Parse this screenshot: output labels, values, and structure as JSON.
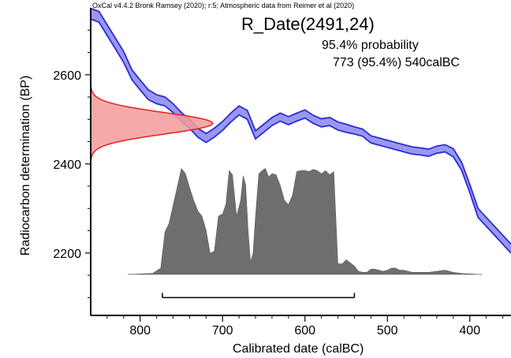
{
  "header": "OxCal v4.4.2 Bronk Ramsey (2020); r:5; Atmospheric data from Reimer et al (2020)",
  "chart_data": {
    "type": "area",
    "title": "R_Date(2491,24)",
    "probability_label": "95.4% probability",
    "range_label": "773 (95.4%) 540calBC",
    "xlabel": "Calibrated date (calBC)",
    "ylabel": "Radiocarbon determination (BP)",
    "xlim": [
      860,
      350
    ],
    "ylim": [
      2060,
      2750
    ],
    "x_ticks": [
      800,
      700,
      600,
      500,
      400
    ],
    "y_ticks": [
      2200,
      2400,
      2600
    ],
    "grid": false,
    "colors": {
      "curve": "#2b2bd6",
      "curve_band": "#9898f0",
      "posterior": "#6e6e6e",
      "measurement": "#e62020",
      "measurement_fill": "#f59a9a"
    },
    "calibration_curve": {
      "name": "IntCal20",
      "x": [
        860,
        850,
        840,
        830,
        820,
        810,
        800,
        790,
        780,
        770,
        760,
        750,
        740,
        730,
        720,
        710,
        700,
        690,
        680,
        670,
        660,
        650,
        640,
        630,
        620,
        610,
        600,
        590,
        580,
        570,
        560,
        550,
        540,
        530,
        520,
        510,
        500,
        490,
        480,
        470,
        460,
        450,
        440,
        430,
        420,
        410,
        400,
        390,
        380,
        370,
        360,
        350
      ],
      "y": [
        2737,
        2730,
        2700,
        2670,
        2640,
        2600,
        2577,
        2555,
        2545,
        2540,
        2525,
        2505,
        2490,
        2470,
        2458,
        2470,
        2485,
        2504,
        2520,
        2510,
        2465,
        2480,
        2495,
        2505,
        2497,
        2505,
        2512,
        2500,
        2492,
        2495,
        2485,
        2480,
        2475,
        2470,
        2455,
        2450,
        2445,
        2440,
        2435,
        2430,
        2428,
        2425,
        2432,
        2435,
        2425,
        2395,
        2345,
        2290,
        2270,
        2250,
        2230,
        2210
      ],
      "sigma": [
        12,
        12,
        12,
        12,
        12,
        11,
        11,
        11,
        10,
        10,
        10,
        10,
        10,
        10,
        10,
        10,
        10,
        10,
        10,
        10,
        9,
        9,
        9,
        9,
        9,
        9,
        9,
        9,
        9,
        9,
        9,
        9,
        8,
        8,
        8,
        8,
        8,
        8,
        8,
        8,
        8,
        8,
        8,
        8,
        9,
        9,
        9,
        10,
        10,
        10,
        10,
        10
      ]
    },
    "measurement": {
      "mean": 2491,
      "sigma": 24
    },
    "posterior": {
      "x": [
        815,
        785,
        775,
        770,
        765,
        758,
        750,
        745,
        740,
        735,
        730,
        725,
        720,
        715,
        710,
        705,
        700,
        696,
        692,
        688,
        683,
        678,
        675,
        672,
        669,
        666,
        663,
        660,
        656,
        652,
        648,
        644,
        640,
        635,
        630,
        625,
        620,
        615,
        610,
        605,
        600,
        595,
        590,
        585,
        580,
        575,
        570,
        565,
        560,
        555,
        550,
        545,
        540,
        535,
        530,
        525,
        520,
        515,
        510,
        505,
        500,
        495,
        490,
        485,
        480,
        470,
        460,
        450,
        440,
        430,
        420,
        410,
        400,
        385
      ],
      "y": [
        0,
        0.01,
        0.06,
        0.4,
        0.48,
        0.72,
        1.0,
        0.95,
        0.82,
        0.7,
        0.6,
        0.55,
        0.42,
        0.2,
        0.22,
        0.55,
        0.57,
        0.66,
        0.98,
        0.94,
        0.55,
        0.7,
        0.93,
        0.85,
        0.42,
        0.12,
        0.2,
        0.55,
        0.95,
        0.98,
        1.0,
        0.92,
        0.95,
        0.94,
        0.84,
        0.7,
        0.66,
        0.75,
        0.97,
        0.98,
        0.98,
        0.97,
        0.99,
        0.98,
        0.95,
        0.98,
        0.94,
        0.97,
        0.1,
        0.1,
        0.14,
        0.11,
        0.08,
        0.03,
        0.02,
        0.02,
        0.05,
        0.05,
        0.04,
        0.03,
        0.04,
        0.06,
        0.06,
        0.04,
        0.04,
        0.02,
        0.02,
        0.02,
        0.03,
        0.04,
        0.02,
        0.01,
        0.005,
        0
      ],
      "base_y": 2152,
      "peak_y": 2390
    },
    "range_bar": {
      "from": 773,
      "to": 540,
      "bc_level": 2100
    }
  }
}
